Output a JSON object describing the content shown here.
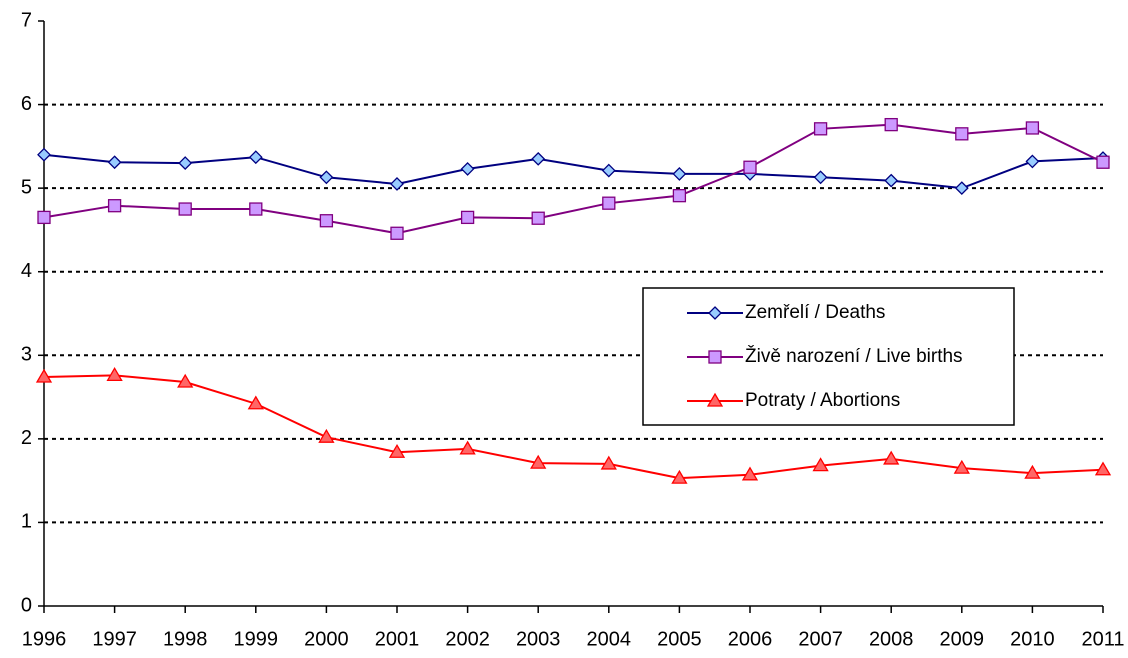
{
  "chart_data": {
    "type": "line",
    "categories": [
      "1996",
      "1997",
      "1998",
      "1999",
      "2000",
      "2001",
      "2002",
      "2003",
      "2004",
      "2005",
      "2006",
      "2007",
      "2008",
      "2009",
      "2010",
      "2011"
    ],
    "series": [
      {
        "name": "Zemřelí / Deaths",
        "color": "#000080",
        "marker": "diamond",
        "marker_fill": "#99ccff",
        "values": [
          5.4,
          5.31,
          5.3,
          5.37,
          5.13,
          5.05,
          5.23,
          5.35,
          5.21,
          5.17,
          5.17,
          5.13,
          5.09,
          5.0,
          5.32,
          5.36
        ]
      },
      {
        "name": "Živě narození / Live births",
        "color": "#800080",
        "marker": "square",
        "marker_fill": "#cc99ff",
        "values": [
          4.65,
          4.79,
          4.75,
          4.75,
          4.61,
          4.46,
          4.65,
          4.64,
          4.82,
          4.91,
          5.25,
          5.71,
          5.76,
          5.65,
          5.72,
          5.31
        ]
      },
      {
        "name": "Potraty / Abortions",
        "color": "#ff0000",
        "marker": "triangle",
        "marker_fill": "#ff6666",
        "values": [
          2.74,
          2.76,
          2.68,
          2.42,
          2.02,
          1.84,
          1.88,
          1.71,
          1.7,
          1.53,
          1.57,
          1.68,
          1.76,
          1.65,
          1.59,
          1.63
        ]
      }
    ],
    "ylim": [
      0,
      7
    ],
    "yticks": [
      0,
      1,
      2,
      3,
      4,
      5,
      6,
      7
    ],
    "grid": true,
    "legend_position": "center-right"
  }
}
